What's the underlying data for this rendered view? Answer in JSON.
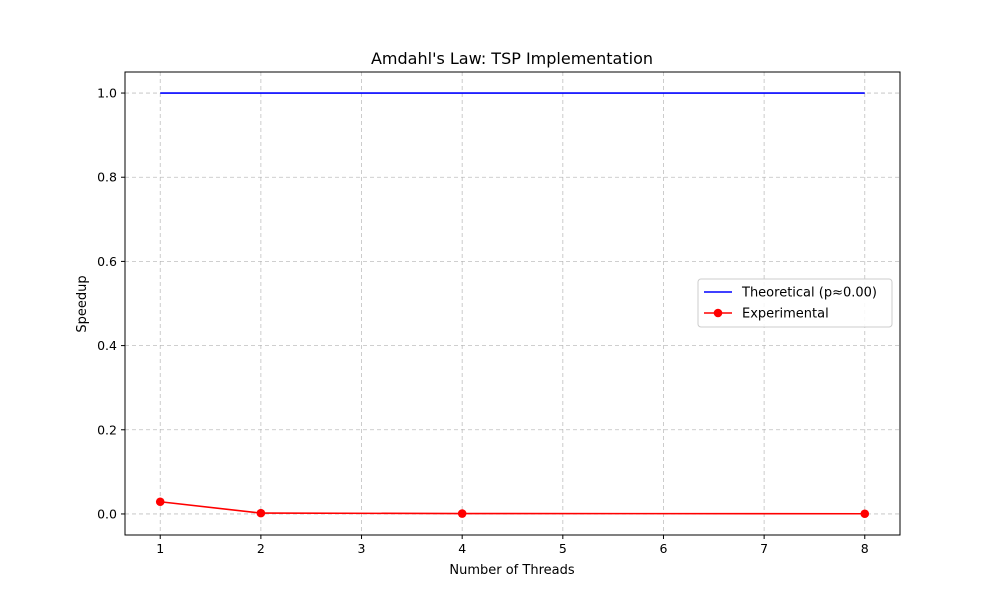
{
  "chart_data": {
    "type": "line",
    "title": "Amdahl's Law: TSP Implementation",
    "xlabel": "Number of Threads",
    "ylabel": "Speedup",
    "xlim": [
      0.65,
      8.35
    ],
    "ylim": [
      -0.05,
      1.05
    ],
    "xticks": [
      1,
      2,
      3,
      4,
      5,
      6,
      7,
      8
    ],
    "yticks": [
      0.0,
      0.2,
      0.4,
      0.6,
      0.8,
      1.0
    ],
    "grid": true,
    "legend_position": "center-right",
    "series": [
      {
        "name": "Theoretical (p≈0.00)",
        "color": "#0000ff",
        "marker": "none",
        "x": [
          1,
          8
        ],
        "y": [
          1.0,
          1.0
        ]
      },
      {
        "name": "Experimental",
        "color": "#ff0000",
        "marker": "circle",
        "x": [
          1,
          2,
          4,
          8
        ],
        "y": [
          0.029,
          0.002,
          0.001,
          0.0005
        ]
      }
    ]
  }
}
